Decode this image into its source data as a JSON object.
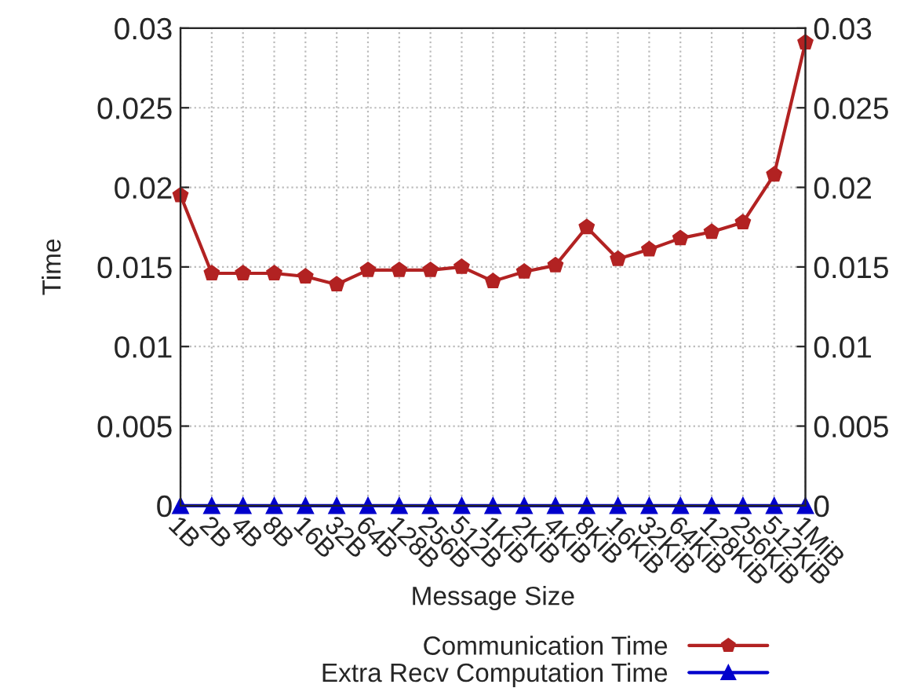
{
  "chart_data": {
    "type": "line",
    "xlabel": "Message Size",
    "ylabel": "Time",
    "categories": [
      "1B",
      "2B",
      "4B",
      "8B",
      "16B",
      "32B",
      "64B",
      "128B",
      "256B",
      "512B",
      "1KiB",
      "2KiB",
      "4KiB",
      "8KiB",
      "16KiB",
      "32KiB",
      "64KiB",
      "128KiB",
      "256KiB",
      "512KiB",
      "1MiB"
    ],
    "series": [
      {
        "name": "Communication Time",
        "color": "#b22222",
        "marker": "circle",
        "values": [
          0.0195,
          0.0146,
          0.0146,
          0.0146,
          0.0144,
          0.0139,
          0.0148,
          0.0148,
          0.0148,
          0.015,
          0.0141,
          0.0147,
          0.0151,
          0.0175,
          0.0155,
          0.0161,
          0.0168,
          0.0172,
          0.0178,
          0.0208,
          0.0291
        ]
      },
      {
        "name": "Extra Recv Computation Time",
        "color": "#0000cc",
        "marker": "triangle",
        "values": [
          0,
          0,
          0,
          0,
          0,
          0,
          0,
          0,
          0,
          0,
          0,
          0,
          0,
          0,
          0,
          0,
          0,
          0,
          0,
          0,
          0
        ]
      }
    ],
    "ylim": [
      0,
      0.03
    ],
    "yticks": [
      0,
      0.005,
      0.01,
      0.015,
      0.02,
      0.025,
      0.03
    ],
    "y2lim": [
      0,
      0.03
    ],
    "y2ticks": [
      0,
      0.005,
      0.01,
      0.015,
      0.02,
      0.025,
      0.03
    ],
    "grid": true,
    "legend": "bottom",
    "line_style": "solid"
  }
}
